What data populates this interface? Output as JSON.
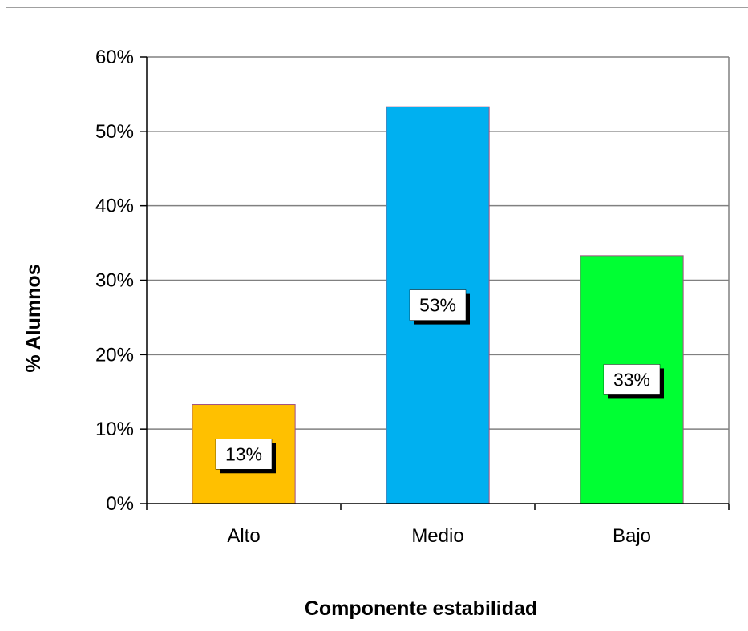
{
  "chart_data": {
    "type": "bar",
    "title": "",
    "xlabel": "Componente estabilidad",
    "ylabel": "% Alumnos",
    "categories": [
      "Alto",
      "Medio",
      "Bajo"
    ],
    "values": [
      13.3,
      53.3,
      33.3
    ],
    "data_labels": [
      "13%",
      "53%",
      "33%"
    ],
    "bar_colors": [
      "#ffc000",
      "#00b0f0",
      "#00ff33"
    ],
    "bar_border_color": "#a05080",
    "ylim": [
      0,
      60
    ],
    "yticks": [
      0,
      10,
      20,
      30,
      40,
      50,
      60
    ],
    "ytick_labels": [
      "0%",
      "10%",
      "20%",
      "30%",
      "40%",
      "50%",
      "60%"
    ],
    "grid": true,
    "legend": "none"
  }
}
